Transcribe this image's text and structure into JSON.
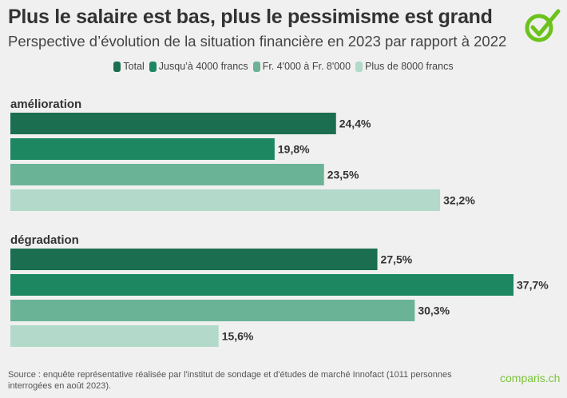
{
  "title": "Plus le salaire est bas, plus le pessimisme est grand",
  "subtitle": "Perspective d’évolution de la situation financière en 2023 par rapport à 2022",
  "source": "Source : enquête représentative réalisée par l'institut de sondage et d'études de marché Innofact (1011 personnes interrogées en août 2023).",
  "brand": "comparis.ch",
  "logo_icon": "check-circle-icon",
  "chart_data": {
    "type": "bar",
    "orientation": "horizontal",
    "categories": [
      "amélioration",
      "dégradation"
    ],
    "series": [
      {
        "name": "Total",
        "color": "#1b6e4f",
        "values": [
          24.4,
          27.5
        ],
        "labels": [
          "24,4%",
          "27,5%"
        ]
      },
      {
        "name": "Jusqu’à 4000 francs",
        "color": "#1c8760",
        "values": [
          19.8,
          37.7
        ],
        "labels": [
          "19,8%",
          "37,7%"
        ]
      },
      {
        "name": "Fr. 4'000 à Fr. 8'000",
        "color": "#6bb397",
        "values": [
          23.5,
          30.3
        ],
        "labels": [
          "23,5%",
          "30,3%"
        ]
      },
      {
        "name": "Plus de 8000 francs",
        "color": "#b2d9c9",
        "values": [
          32.2,
          15.6
        ],
        "labels": [
          "32,2%",
          "15,6%"
        ]
      }
    ],
    "unit": "%",
    "legend": "top-center",
    "grid": false
  }
}
